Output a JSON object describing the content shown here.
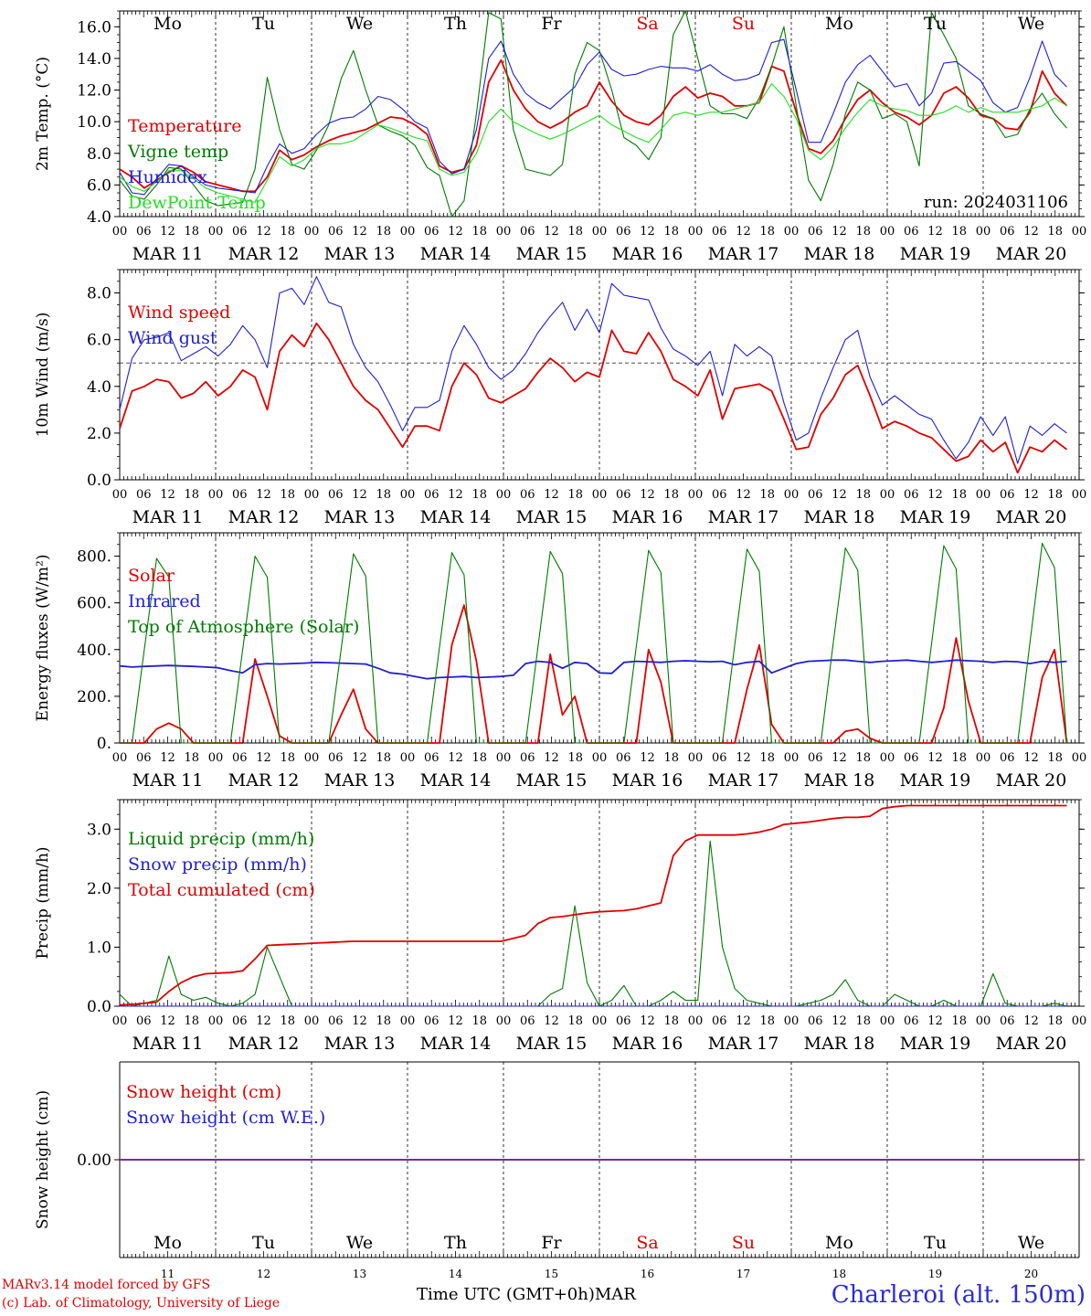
{
  "run_label": "run: 2024031106",
  "day_abbrevs": [
    "Mo",
    "Tu",
    "We",
    "Th",
    "Fr",
    "Sa",
    "Su",
    "Mo",
    "Tu",
    "We"
  ],
  "weekend_color": "#e00000",
  "weekday_color": "#000000",
  "weekend_days": [
    "Sa",
    "Su"
  ],
  "date_labels": [
    "MAR 11",
    "MAR 12",
    "MAR 13",
    "MAR 14",
    "MAR 15",
    "MAR 16",
    "MAR 17",
    "MAR 18",
    "MAR 19",
    "MAR 20"
  ],
  "hour_ticks": [
    "00",
    "06",
    "12",
    "18"
  ],
  "end_tick": "00",
  "bottom_day_numbers": [
    "11",
    "12",
    "13",
    "14",
    "15",
    "16",
    "17",
    "18",
    "19",
    "20"
  ],
  "footer": {
    "model": "MARv3.14 model forced by GFS",
    "copyright": "(c) Lab. of Climatology, University of Liege",
    "time_axis": "Time UTC (GMT+0h)",
    "month": "MAR",
    "station": "Charleroi (alt. 150m)"
  },
  "chart_data": [
    {
      "type": "line",
      "ylabel": "2m Temp. (°C)",
      "ylim": [
        4,
        17
      ],
      "yticks": [
        "4.0",
        "6.0",
        "8.0",
        "10.0",
        "12.0",
        "14.0",
        "16.0"
      ],
      "x_unit": "hours since MAR 11 00 UTC (3-hourly)",
      "series": [
        {
          "name": "Temperature",
          "color": "#e00000",
          "values": [
            7.0,
            6.5,
            5.8,
            6.3,
            6.8,
            7.2,
            6.8,
            6.2,
            6.0,
            5.8,
            5.6,
            5.6,
            6.5,
            8.2,
            7.6,
            7.9,
            8.4,
            8.8,
            9.1,
            9.3,
            9.5,
            9.9,
            10.3,
            10.2,
            9.8,
            9.2,
            7.2,
            6.8,
            7.0,
            8.5,
            12.5,
            13.9,
            12.0,
            10.8,
            10.0,
            9.6,
            10.0,
            10.6,
            11.0,
            12.5,
            11.3,
            10.4,
            10.0,
            9.8,
            10.4,
            11.6,
            12.2,
            11.5,
            11.8,
            11.6,
            11.0,
            11.0,
            11.2,
            13.5,
            13.2,
            10.6,
            8.3,
            8.0,
            8.8,
            10.2,
            11.4,
            12.0,
            11.2,
            10.6,
            10.3,
            9.8,
            10.4,
            11.8,
            12.2,
            11.5,
            10.4,
            10.2,
            9.6,
            9.5,
            10.6,
            13.2,
            11.8,
            11.0
          ]
        },
        {
          "name": "Vigne temp",
          "color": "#007a00",
          "values": [
            6.3,
            5.3,
            5.1,
            6.0,
            7.1,
            7.0,
            6.0,
            5.0,
            4.7,
            4.8,
            4.9,
            7.0,
            12.8,
            9.5,
            7.3,
            7.0,
            8.2,
            9.8,
            12.7,
            14.5,
            12.0,
            9.8,
            9.4,
            9.1,
            8.5,
            7.1,
            6.6,
            3.9,
            5.0,
            10.5,
            16.9,
            16.5,
            9.5,
            7.0,
            6.8,
            6.6,
            7.3,
            13.0,
            15.0,
            14.5,
            12.0,
            9.0,
            8.5,
            7.6,
            9.0,
            15.5,
            17.1,
            14.0,
            11.0,
            10.5,
            10.5,
            10.2,
            11.5,
            13.5,
            16.0,
            11.0,
            6.3,
            5.0,
            7.3,
            10.5,
            12.5,
            12.0,
            10.2,
            10.5,
            10.0,
            7.2,
            16.9,
            15.5,
            14.0,
            11.0,
            10.5,
            10.2,
            9.0,
            9.2,
            10.8,
            11.8,
            10.5,
            9.6
          ]
        },
        {
          "name": "Humidex",
          "color": "#1f1fd0",
          "values": [
            6.8,
            5.5,
            5.4,
            6.4,
            7.3,
            7.2,
            6.5,
            6.0,
            5.8,
            5.7,
            5.6,
            5.5,
            7.2,
            8.6,
            8.0,
            8.3,
            9.2,
            9.9,
            10.2,
            10.3,
            10.8,
            11.6,
            11.4,
            10.8,
            10.0,
            9.6,
            7.5,
            6.7,
            7.0,
            9.5,
            14.0,
            15.1,
            13.0,
            11.8,
            11.2,
            10.8,
            11.5,
            12.2,
            13.6,
            14.4,
            13.3,
            12.9,
            13.0,
            13.3,
            13.5,
            13.4,
            13.4,
            13.2,
            13.6,
            13.0,
            12.6,
            12.7,
            13.0,
            15.0,
            15.2,
            12.0,
            8.7,
            8.7,
            10.5,
            12.5,
            13.6,
            14.2,
            13.2,
            12.2,
            12.4,
            11.0,
            11.8,
            13.7,
            13.8,
            13.2,
            12.6,
            11.2,
            10.6,
            10.9,
            12.8,
            15.1,
            13.0,
            12.2
          ]
        },
        {
          "name": "DewPoint Temp",
          "color": "#22e022",
          "values": [
            6.5,
            5.9,
            5.6,
            6.2,
            6.9,
            6.9,
            6.4,
            5.8,
            5.5,
            5.3,
            5.1,
            4.9,
            6.3,
            7.8,
            7.2,
            7.6,
            8.3,
            8.6,
            8.6,
            8.8,
            9.3,
            9.8,
            9.6,
            9.3,
            9.0,
            8.8,
            7.0,
            6.6,
            6.8,
            8.0,
            10.0,
            10.8,
            10.0,
            9.6,
            9.2,
            8.9,
            9.2,
            9.6,
            10.0,
            10.4,
            9.8,
            9.4,
            9.0,
            8.7,
            9.5,
            10.4,
            10.6,
            10.4,
            10.6,
            10.6,
            10.8,
            11.0,
            11.2,
            12.4,
            11.6,
            10.2,
            8.2,
            7.6,
            8.4,
            9.6,
            10.6,
            11.4,
            11.0,
            10.8,
            10.7,
            10.4,
            10.4,
            10.6,
            11.0,
            10.6,
            10.9,
            10.6,
            10.6,
            10.6,
            10.8,
            11.0,
            11.5,
            11.0
          ]
        }
      ]
    },
    {
      "type": "line",
      "ylabel": "10m Wind (m/s)",
      "ylim": [
        0,
        9
      ],
      "yticks": [
        "0.0",
        "2.0",
        "4.0",
        "6.0",
        "8.0"
      ],
      "reference_line": 5.0,
      "series": [
        {
          "name": "Wind speed",
          "color": "#e00000",
          "values": [
            2.2,
            3.8,
            4.0,
            4.3,
            4.2,
            3.5,
            3.7,
            4.2,
            3.6,
            4.0,
            4.7,
            4.4,
            3.0,
            5.5,
            6.2,
            5.7,
            6.7,
            6.0,
            5.0,
            4.0,
            3.4,
            3.0,
            2.2,
            1.4,
            2.3,
            2.3,
            2.1,
            4.0,
            5.0,
            4.5,
            3.5,
            3.3,
            3.6,
            3.9,
            4.6,
            5.2,
            4.8,
            4.2,
            4.6,
            4.4,
            6.4,
            5.5,
            5.4,
            6.3,
            5.5,
            4.3,
            4.0,
            3.6,
            4.7,
            2.6,
            3.9,
            4.0,
            4.1,
            3.8,
            2.6,
            1.3,
            1.4,
            2.8,
            3.5,
            4.5,
            4.9,
            3.6,
            2.2,
            2.5,
            2.3,
            2.0,
            1.8,
            1.3,
            0.8,
            1.0,
            1.7,
            1.2,
            1.6,
            0.3,
            1.4,
            1.2,
            1.7,
            1.3
          ]
        },
        {
          "name": "Wind gust",
          "color": "#1f1fd0",
          "values": [
            3.0,
            5.2,
            6.0,
            6.1,
            6.3,
            5.1,
            5.4,
            5.7,
            5.3,
            5.8,
            6.6,
            6.0,
            4.8,
            8.0,
            8.2,
            7.5,
            8.7,
            7.6,
            7.4,
            5.8,
            4.8,
            4.2,
            3.2,
            2.1,
            3.1,
            3.1,
            3.4,
            5.5,
            6.6,
            5.8,
            4.8,
            4.3,
            4.7,
            5.4,
            6.3,
            7.0,
            7.6,
            6.4,
            7.3,
            6.3,
            8.4,
            7.9,
            7.8,
            7.7,
            6.5,
            5.6,
            5.3,
            4.9,
            5.5,
            3.6,
            5.8,
            5.3,
            5.7,
            5.3,
            3.3,
            1.7,
            2.0,
            3.5,
            4.8,
            6.0,
            6.4,
            4.4,
            3.2,
            3.6,
            3.2,
            2.8,
            2.6,
            1.7,
            0.9,
            1.6,
            2.7,
            1.9,
            2.7,
            0.7,
            2.3,
            1.9,
            2.4,
            2.0
          ]
        }
      ]
    },
    {
      "type": "line",
      "ylabel": "Energy fluxes (W/m²)",
      "ylim": [
        0,
        900
      ],
      "yticks": [
        "0.",
        "200.",
        "400.",
        "600.",
        "800."
      ],
      "series": [
        {
          "name": "Solar",
          "color": "#e00000",
          "values": [
            0,
            0,
            0,
            60,
            85,
            60,
            0,
            0,
            0,
            0,
            0,
            360,
            200,
            30,
            0,
            0,
            0,
            0,
            120,
            230,
            60,
            0,
            0,
            0,
            0,
            0,
            0,
            420,
            590,
            350,
            0,
            0,
            0,
            0,
            0,
            380,
            120,
            200,
            0,
            0,
            0,
            0,
            0,
            400,
            260,
            0,
            0,
            0,
            0,
            0,
            0,
            230,
            420,
            80,
            0,
            0,
            0,
            0,
            0,
            50,
            60,
            20,
            0,
            0,
            0,
            0,
            0,
            150,
            450,
            180,
            0,
            0,
            0,
            0,
            0,
            280,
            400,
            0
          ]
        },
        {
          "name": "Infrared",
          "color": "#1f1fd0",
          "values": [
            330,
            325,
            328,
            330,
            332,
            330,
            328,
            325,
            322,
            310,
            300,
            335,
            340,
            338,
            340,
            342,
            345,
            344,
            342,
            340,
            338,
            320,
            300,
            295,
            285,
            275,
            280,
            282,
            285,
            280,
            282,
            285,
            290,
            340,
            350,
            345,
            320,
            345,
            340,
            300,
            298,
            345,
            350,
            348,
            345,
            350,
            352,
            350,
            348,
            350,
            335,
            345,
            350,
            300,
            320,
            340,
            350,
            352,
            355,
            355,
            350,
            345,
            350,
            352,
            355,
            350,
            345,
            350,
            355,
            352,
            350,
            345,
            350,
            348,
            340,
            350,
            345,
            350
          ]
        },
        {
          "name": "Top of Atmosphere (Solar)",
          "color": "#007a00",
          "values": [
            0,
            0,
            400,
            790,
            710,
            0,
            0,
            0,
            0,
            0,
            400,
            800,
            710,
            0,
            0,
            0,
            0,
            0,
            400,
            810,
            715,
            0,
            0,
            0,
            0,
            0,
            410,
            815,
            720,
            0,
            0,
            0,
            0,
            0,
            410,
            820,
            725,
            0,
            0,
            0,
            0,
            0,
            415,
            825,
            730,
            0,
            0,
            0,
            0,
            0,
            420,
            830,
            735,
            0,
            0,
            0,
            0,
            0,
            425,
            835,
            740,
            0,
            0,
            0,
            0,
            0,
            425,
            845,
            745,
            0,
            0,
            0,
            0,
            0,
            430,
            855,
            750,
            0
          ]
        }
      ]
    },
    {
      "type": "line",
      "ylabel": "Precip (mm/h)",
      "ylim": [
        0,
        3.5
      ],
      "yticks": [
        "0.0",
        "1.0",
        "2.0",
        "3.0"
      ],
      "series": [
        {
          "name": "Liquid precip (mm/h)",
          "color": "#007a00",
          "values": [
            0.2,
            0.0,
            0.05,
            0.1,
            0.85,
            0.2,
            0.1,
            0.15,
            0.05,
            0.0,
            0.05,
            0.2,
            1.0,
            0.5,
            0.0,
            0.0,
            0.0,
            0.0,
            0.0,
            0.0,
            0.0,
            0.0,
            0.0,
            0.0,
            0.0,
            0.0,
            0.0,
            0.0,
            0.0,
            0.0,
            0.0,
            0.0,
            0.0,
            0.0,
            0.0,
            0.2,
            0.3,
            1.7,
            0.4,
            0.0,
            0.1,
            0.35,
            0.0,
            0.0,
            0.1,
            0.25,
            0.1,
            0.1,
            2.8,
            1.0,
            0.3,
            0.1,
            0.05,
            0.0,
            0.0,
            0.0,
            0.05,
            0.1,
            0.2,
            0.45,
            0.1,
            0.0,
            0.0,
            0.2,
            0.1,
            0.0,
            0.0,
            0.1,
            0.0,
            0.0,
            0.0,
            0.55,
            0.05,
            0.0,
            0.0,
            0.0,
            0.05,
            0.0
          ]
        },
        {
          "name": "Snow precip (mm/h)",
          "color": "#1f1fd0",
          "values": [
            0,
            0,
            0,
            0,
            0,
            0,
            0,
            0,
            0,
            0,
            0,
            0,
            0,
            0,
            0,
            0,
            0,
            0,
            0,
            0,
            0,
            0,
            0,
            0,
            0,
            0,
            0,
            0,
            0,
            0,
            0,
            0,
            0,
            0,
            0,
            0,
            0,
            0,
            0,
            0,
            0,
            0,
            0,
            0,
            0,
            0,
            0,
            0,
            0,
            0,
            0,
            0,
            0,
            0,
            0,
            0,
            0,
            0,
            0,
            0,
            0,
            0,
            0,
            0,
            0,
            0,
            0,
            0,
            0,
            0,
            0,
            0,
            0,
            0,
            0,
            0,
            0,
            0
          ]
        },
        {
          "name": "Total cumulated (cm)",
          "color": "#e00000",
          "values": [
            0.02,
            0.03,
            0.05,
            0.07,
            0.25,
            0.4,
            0.5,
            0.55,
            0.56,
            0.57,
            0.6,
            0.8,
            1.03,
            1.04,
            1.05,
            1.06,
            1.07,
            1.08,
            1.09,
            1.1,
            1.1,
            1.1,
            1.1,
            1.1,
            1.1,
            1.1,
            1.1,
            1.1,
            1.1,
            1.1,
            1.1,
            1.1,
            1.15,
            1.2,
            1.4,
            1.5,
            1.52,
            1.55,
            1.58,
            1.6,
            1.61,
            1.62,
            1.65,
            1.7,
            1.75,
            2.55,
            2.8,
            2.9,
            2.9,
            2.9,
            2.9,
            2.92,
            2.95,
            3.0,
            3.08,
            3.1,
            3.12,
            3.15,
            3.18,
            3.2,
            3.2,
            3.22,
            3.35,
            3.38,
            3.4,
            3.4,
            3.4,
            3.4,
            3.4,
            3.4,
            3.4,
            3.4,
            3.4,
            3.4,
            3.4,
            3.4,
            3.4,
            3.4
          ]
        }
      ]
    },
    {
      "type": "line",
      "ylabel": "Snow height (cm)",
      "yticks": [
        "0.00"
      ],
      "series": [
        {
          "name": "Snow height (cm)",
          "color": "#e00000",
          "values": [
            0,
            0
          ]
        },
        {
          "name": "Snow height (cm W.E.)",
          "color": "#1f1fd0",
          "values": [
            0,
            0
          ]
        }
      ],
      "zero_line_color": "#7a2a9a"
    }
  ]
}
